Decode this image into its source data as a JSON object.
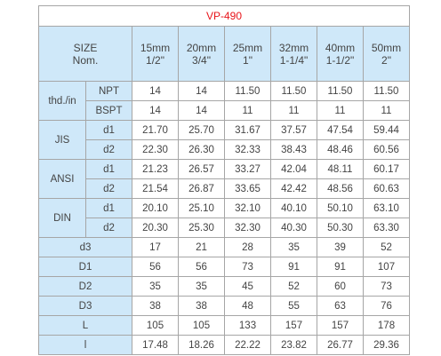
{
  "title": "VP-490",
  "header": {
    "size_line1": "SIZE",
    "size_line2": "Nom.",
    "columns": [
      {
        "mm": "15mm",
        "inch": "1/2\""
      },
      {
        "mm": "20mm",
        "inch": "3/4\""
      },
      {
        "mm": "25mm",
        "inch": "1\""
      },
      {
        "mm": "32mm",
        "inch": "1-1/4\""
      },
      {
        "mm": "40mm",
        "inch": "1-1/2\""
      },
      {
        "mm": "50mm",
        "inch": "2\""
      }
    ]
  },
  "groups": {
    "thd": "thd./in",
    "jis": "JIS",
    "ansi": "ANSI",
    "din": "DIN"
  },
  "rows": {
    "npt": {
      "label": "NPT",
      "values": [
        "14",
        "14",
        "11.50",
        "11.50",
        "11.50",
        "11.50"
      ]
    },
    "bspt": {
      "label": "BSPT",
      "values": [
        "14",
        "14",
        "11",
        "11",
        "11",
        "11"
      ]
    },
    "jis_d1": {
      "label": "d1",
      "values": [
        "21.70",
        "25.70",
        "31.67",
        "37.57",
        "47.54",
        "59.44"
      ]
    },
    "jis_d2": {
      "label": "d2",
      "values": [
        "22.30",
        "26.30",
        "32.33",
        "38.43",
        "48.46",
        "60.56"
      ]
    },
    "ansi_d1": {
      "label": "d1",
      "values": [
        "21.23",
        "26.57",
        "33.27",
        "42.04",
        "48.11",
        "60.17"
      ]
    },
    "ansi_d2": {
      "label": "d2",
      "values": [
        "21.54",
        "26.87",
        "33.65",
        "42.42",
        "48.56",
        "60.63"
      ]
    },
    "din_d1": {
      "label": "d1",
      "values": [
        "20.10",
        "25.10",
        "32.10",
        "40.10",
        "50.10",
        "63.10"
      ]
    },
    "din_d2": {
      "label": "d2",
      "values": [
        "20.30",
        "25.30",
        "32.30",
        "40.30",
        "50.30",
        "63.30"
      ]
    },
    "d3": {
      "label": "d3",
      "values": [
        "17",
        "21",
        "28",
        "35",
        "39",
        "52"
      ]
    },
    "D1": {
      "label": "D1",
      "values": [
        "56",
        "56",
        "73",
        "91",
        "91",
        "107"
      ]
    },
    "D2": {
      "label": "D2",
      "values": [
        "35",
        "35",
        "45",
        "52",
        "60",
        "73"
      ]
    },
    "D3": {
      "label": "D3",
      "values": [
        "38",
        "38",
        "48",
        "55",
        "63",
        "76"
      ]
    },
    "L": {
      "label": "L",
      "values": [
        "105",
        "105",
        "133",
        "157",
        "157",
        "178"
      ]
    },
    "l": {
      "label": "l",
      "values": [
        "17.48",
        "18.26",
        "22.22",
        "23.82",
        "26.77",
        "29.36"
      ]
    }
  }
}
